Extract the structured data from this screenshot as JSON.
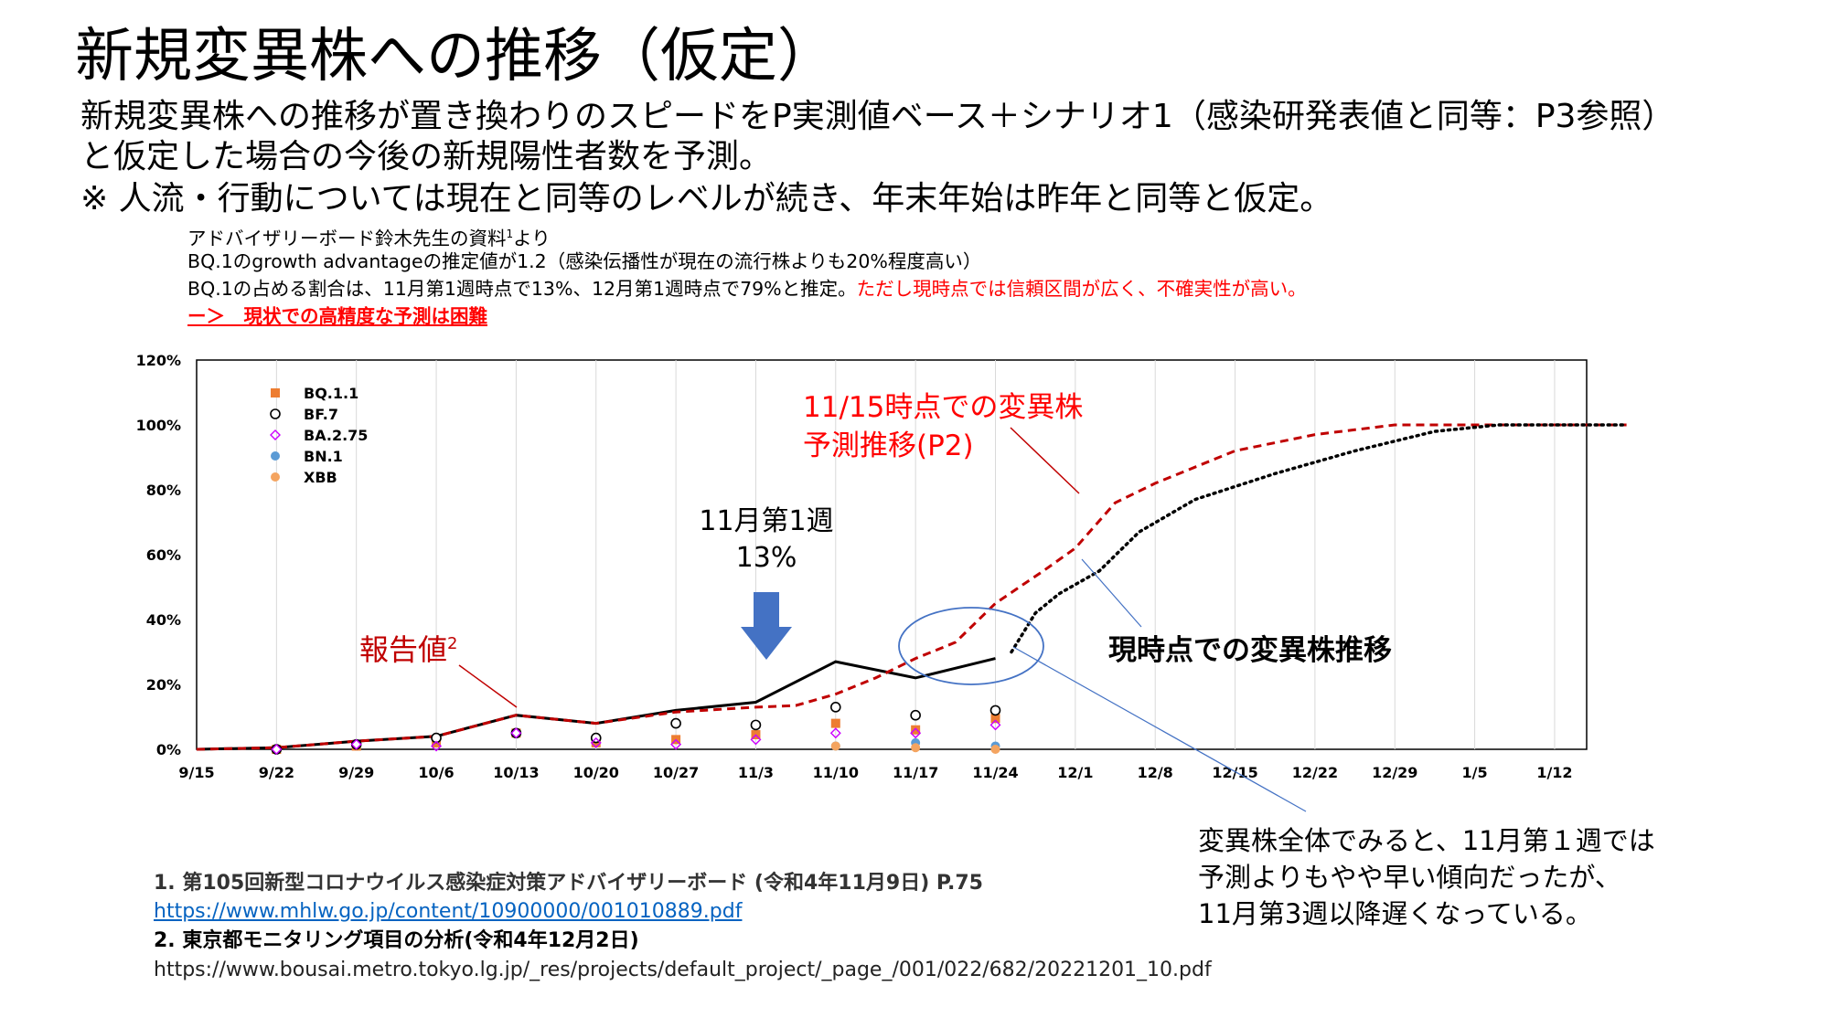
{
  "title": "新規変異株への推移（仮定）",
  "lead": {
    "line1": "新規変異株への推移が置き換わりのスピードをP実測値ベース＋シナリオ1（感染研発表値と同等：P3参照）",
    "line2": "と仮定した場合の今後の新規陽性者数を予測。",
    "line3": "※ 人流・行動については現在と同等のレベルが続き、年末年始は昨年と同等と仮定。"
  },
  "sub": {
    "line1": "アドバイザリーボード鈴木先生の資料",
    "line1_sup": "1",
    "line1_end": "より",
    "line2": "BQ.1のgrowth advantageの推定値が1.2（感染伝播性が現在の流行株よりも20%程度高い）",
    "line3_black": "BQ.1の占める割合は、11月第1週時点で13%、12月第1週時点で79%と推定。",
    "line3_red": "ただし現時点では信頼区間が広く、不確実性が高い。",
    "line4": "ー＞　現状での高精度な予測は困難"
  },
  "annotations": {
    "forecast_line1": "11/15時点での変異株",
    "forecast_line2": "予測推移(P2)",
    "week_line1": "11月第1週",
    "week_line2": "13%",
    "reported": "報告値",
    "reported_sup": "2",
    "current": "現時点での変異株推移"
  },
  "note": {
    "line1": "変異株全体でみると、11月第１週では",
    "line2": "予測よりもやや早い傾向だったが、",
    "line3": "11月第3週以降遅くなっている。"
  },
  "footnotes": {
    "fn1": "1. 第105回新型コロナウイルス感染症対策アドバイザリーボード (令和4年11月9日) P.75",
    "fn1_url": "https://www.mhlw.go.jp/content/10900000/001010889.pdf",
    "fn2": "2. 東京都モニタリング項目の分析(令和4年12月2日)",
    "fn2_url": "https://www.bousai.metro.tokyo.lg.jp/_res/projects/default_project/_page_/001/022/682/20221201_10.pdf"
  },
  "colors": {
    "accent_red": "#ff0000",
    "forecast_line": "#c00000",
    "current_line": "#000000",
    "arrow": "#4472c4",
    "ellipse": "#4472c4",
    "bq11": "#ed7d31",
    "bf7": "#000000",
    "ba275": "#cc00ff",
    "bn1": "#5b9bd5",
    "xbb": "#f4a460"
  },
  "chart_data": {
    "type": "line",
    "x_labels": [
      "9/15",
      "9/22",
      "9/29",
      "10/6",
      "10/13",
      "10/20",
      "10/27",
      "11/3",
      "11/10",
      "11/17",
      "11/24",
      "12/1",
      "12/8",
      "12/15",
      "12/22",
      "12/29",
      "1/5",
      "1/12"
    ],
    "ylim": [
      0,
      120
    ],
    "y_ticks": [
      "0%",
      "20%",
      "40%",
      "60%",
      "80%",
      "100%",
      "120%"
    ],
    "grid": "vertical",
    "legend_position": "top-left",
    "legend": [
      {
        "name": "BQ.1.1",
        "marker": "square",
        "color": "#ed7d31"
      },
      {
        "name": "BF.7",
        "marker": "circle-open",
        "color": "#000000"
      },
      {
        "name": "BA.2.75",
        "marker": "diamond-open",
        "color": "#cc00ff"
      },
      {
        "name": "BN.1",
        "marker": "circle",
        "color": "#5b9bd5"
      },
      {
        "name": "XBB",
        "marker": "circle",
        "color": "#f4a460"
      }
    ],
    "lines": [
      {
        "style": "solid",
        "color": "#000000",
        "x": [
          0,
          1,
          2,
          3,
          4,
          5,
          6,
          7,
          8,
          9,
          10
        ],
        "y": [
          0,
          0.5,
          2.5,
          4,
          10.5,
          8,
          12,
          14.5,
          27,
          22,
          28
        ]
      },
      {
        "style": "dashed",
        "color": "#c00000",
        "x": [
          0,
          1,
          2,
          3,
          4,
          5,
          6,
          7,
          7.5,
          8,
          8.5,
          9,
          9.3,
          9.5,
          10,
          10.3,
          10.6,
          11,
          11.5,
          12,
          13,
          14,
          15,
          16,
          17,
          17.9
        ],
        "y": [
          0,
          0.5,
          2.5,
          4,
          10.5,
          8,
          11.5,
          13,
          13.5,
          17,
          22,
          28,
          31,
          33,
          45,
          50,
          55,
          62,
          76,
          82,
          92,
          97,
          100,
          100,
          100,
          100
        ]
      },
      {
        "style": "dotted",
        "color": "#000000",
        "x": [
          10.2,
          10.5,
          10.8,
          11.3,
          11.8,
          12.5,
          13.5,
          14.5,
          15.5,
          16.3,
          17,
          17.9
        ],
        "y": [
          30,
          42,
          48,
          55,
          67,
          77,
          85,
          92,
          98,
          100,
          100,
          100
        ]
      }
    ],
    "scatter": [
      {
        "name": "BQ.1.1",
        "x": [
          1,
          2,
          3,
          4,
          5,
          6,
          7,
          8,
          9,
          10
        ],
        "y": [
          0,
          1,
          2,
          5,
          2,
          3,
          4.5,
          8,
          6,
          9.5
        ]
      },
      {
        "name": "BF.7",
        "x": [
          1,
          2,
          3,
          4,
          5,
          6,
          7,
          8,
          9,
          10
        ],
        "y": [
          0,
          1.5,
          3.5,
          5,
          3.5,
          8,
          7.5,
          13,
          10.5,
          12
        ]
      },
      {
        "name": "BA.2.75",
        "x": [
          1,
          2,
          3,
          4,
          5,
          6,
          7,
          8,
          9,
          10
        ],
        "y": [
          0,
          1.5,
          1,
          5,
          2,
          1.5,
          3,
          5,
          5,
          7.5
        ]
      },
      {
        "name": "BN.1",
        "x": [
          8,
          9,
          10
        ],
        "y": [
          1,
          2,
          1
        ]
      },
      {
        "name": "XBB",
        "x": [
          8,
          9,
          10
        ],
        "y": [
          1,
          0.5,
          0
        ]
      }
    ]
  }
}
